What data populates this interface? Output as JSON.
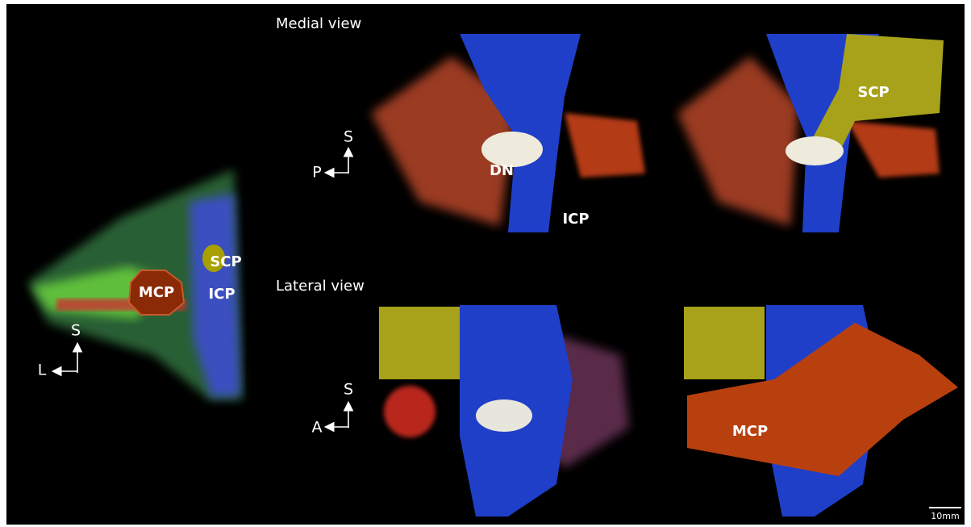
{
  "views": {
    "medial": "Medial view",
    "lateral": "Lateral view"
  },
  "axial_panel": {
    "labels": {
      "mcp": "MCP",
      "scp": "SCP",
      "icp": "ICP"
    },
    "orientation": {
      "vertical": "S",
      "horizontal": "L"
    }
  },
  "medial_panel": {
    "orientation": {
      "vertical": "S",
      "horizontal": "P"
    },
    "labels": {
      "dn": "DN",
      "icp": "ICP",
      "scp": "SCP"
    }
  },
  "lateral_panel": {
    "orientation": {
      "vertical": "S",
      "horizontal": "A"
    },
    "labels": {
      "mcp": "MCP"
    }
  },
  "scale_bar": "10mm"
}
